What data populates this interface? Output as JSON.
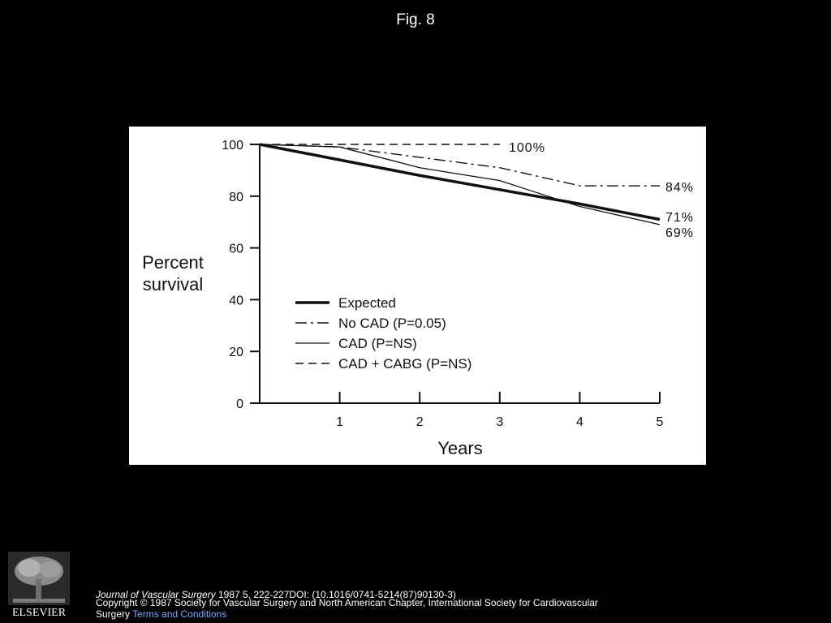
{
  "figure_title": "Fig. 8",
  "chart_data": {
    "type": "line",
    "xlabel": "Years",
    "ylabel_lines": [
      "Percent",
      "survival"
    ],
    "x_ticks": [
      1,
      2,
      3,
      4,
      5
    ],
    "y_ticks": [
      0,
      20,
      40,
      60,
      80,
      100
    ],
    "xlim": [
      0,
      5
    ],
    "ylim": [
      0,
      100
    ],
    "grid": false,
    "legend_position": "lower-left",
    "series": [
      {
        "name": "Expected",
        "style": "thick-solid",
        "x": [
          0,
          1,
          2,
          3,
          4,
          5
        ],
        "y": [
          100,
          94,
          88,
          82.5,
          77,
          71
        ]
      },
      {
        "name": "No CAD (P=0.05)",
        "style": "dash-dot",
        "x": [
          0,
          1,
          2,
          3,
          4,
          5
        ],
        "y": [
          100,
          99,
          95,
          91,
          84,
          84
        ]
      },
      {
        "name": "CAD (P=NS)",
        "style": "thin-solid",
        "x": [
          0,
          1,
          2,
          3,
          4,
          5
        ],
        "y": [
          100,
          99,
          91,
          86,
          76,
          69
        ]
      },
      {
        "name": "CAD + CABG (P=NS)",
        "style": "dashed",
        "x": [
          0,
          1,
          2,
          3
        ],
        "y": [
          100,
          100,
          100,
          100
        ]
      }
    ],
    "annotations": [
      "100%",
      "84%",
      "71%",
      "69%"
    ]
  },
  "logo": {
    "text": "ELSEVIER",
    "icon": "elsevier-tree-icon"
  },
  "footer": {
    "journal": "Journal of Vascular Surgery",
    "citation": " 1987 5, 222-227DOI: (10.1016/0741-5214(87)90130-3)",
    "copyright": "Copyright © 1987 Society for Vascular Surgery and North American Chapter, International Society for Cardiovascular Surgery ",
    "terms_link": "Terms and Conditions"
  }
}
